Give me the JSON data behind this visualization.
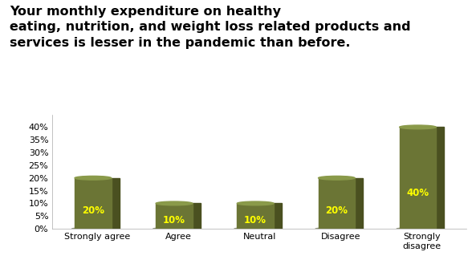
{
  "title": "Your monthly expenditure on healthy\neating, nutrition, and weight loss related products and\nservices is lesser in the pandemic than before.",
  "categories": [
    "Strongly agree",
    "Agree",
    "Neutral",
    "Disagree",
    "Strongly\ndisagree"
  ],
  "values": [
    20,
    10,
    10,
    20,
    40
  ],
  "bar_color_body": "#6B7535",
  "bar_color_top": "#8A9A4A",
  "bar_color_shadow": "#4A5020",
  "bar_color_bottom_shadow": "#3A4018",
  "label_color": "#FFFF00",
  "ylim": [
    0,
    45
  ],
  "yticks": [
    0,
    5,
    10,
    15,
    20,
    25,
    30,
    35,
    40
  ],
  "background_color": "#FFFFFF",
  "title_fontsize": 11.5,
  "label_fontsize": 8.5,
  "tick_fontsize": 8,
  "bar_width": 0.55
}
